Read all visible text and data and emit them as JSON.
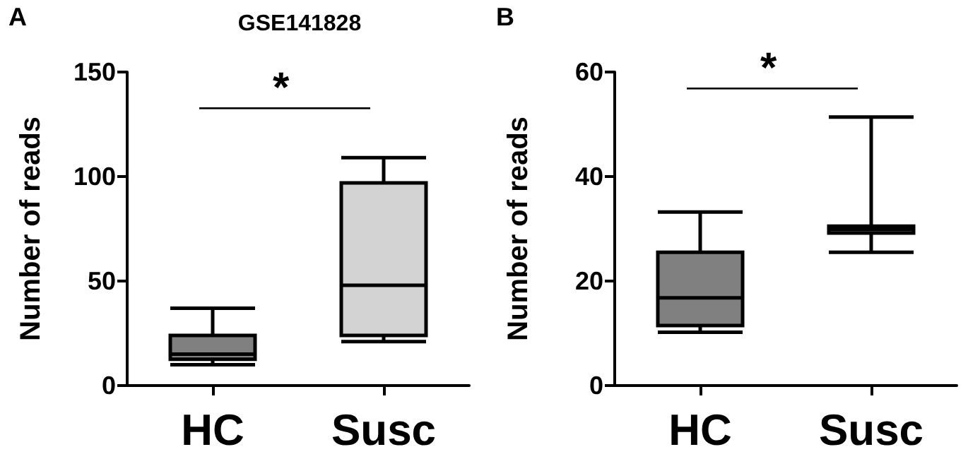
{
  "chart_data": [
    {
      "type": "box",
      "title": "GSE141828",
      "ylabel": "Number of reads",
      "categories": [
        "HC",
        "Susc"
      ],
      "boxes": [
        {
          "low": 10,
          "q1": 12.6,
          "median": 15,
          "q3": 24,
          "high": 37
        },
        {
          "low": 21,
          "q1": 24,
          "median": 48,
          "q3": 97,
          "high": 109
        }
      ],
      "colors": [
        "#808080",
        "#d3d3d3"
      ],
      "ylim": [
        0,
        150
      ],
      "yticks": [
        0,
        50,
        100,
        150
      ],
      "grid": false,
      "annotations": [
        "A",
        "*"
      ]
    },
    {
      "type": "box",
      "ylabel": "Number of reads",
      "categories": [
        "HC",
        "Susc"
      ],
      "boxes": [
        {
          "low": 10.2,
          "q1": 11.5,
          "median": 16.8,
          "q3": 25.5,
          "high": 33.2
        },
        {
          "low": 25.5,
          "q1": 29.2,
          "median": 29.9,
          "q3": 30.5,
          "high": 51.4
        }
      ],
      "colors": [
        "#808080",
        "#d3d3d3"
      ],
      "ylim": [
        0,
        60
      ],
      "yticks": [
        0,
        20,
        40,
        60
      ],
      "grid": false,
      "annotations": [
        "B",
        "*"
      ]
    }
  ]
}
